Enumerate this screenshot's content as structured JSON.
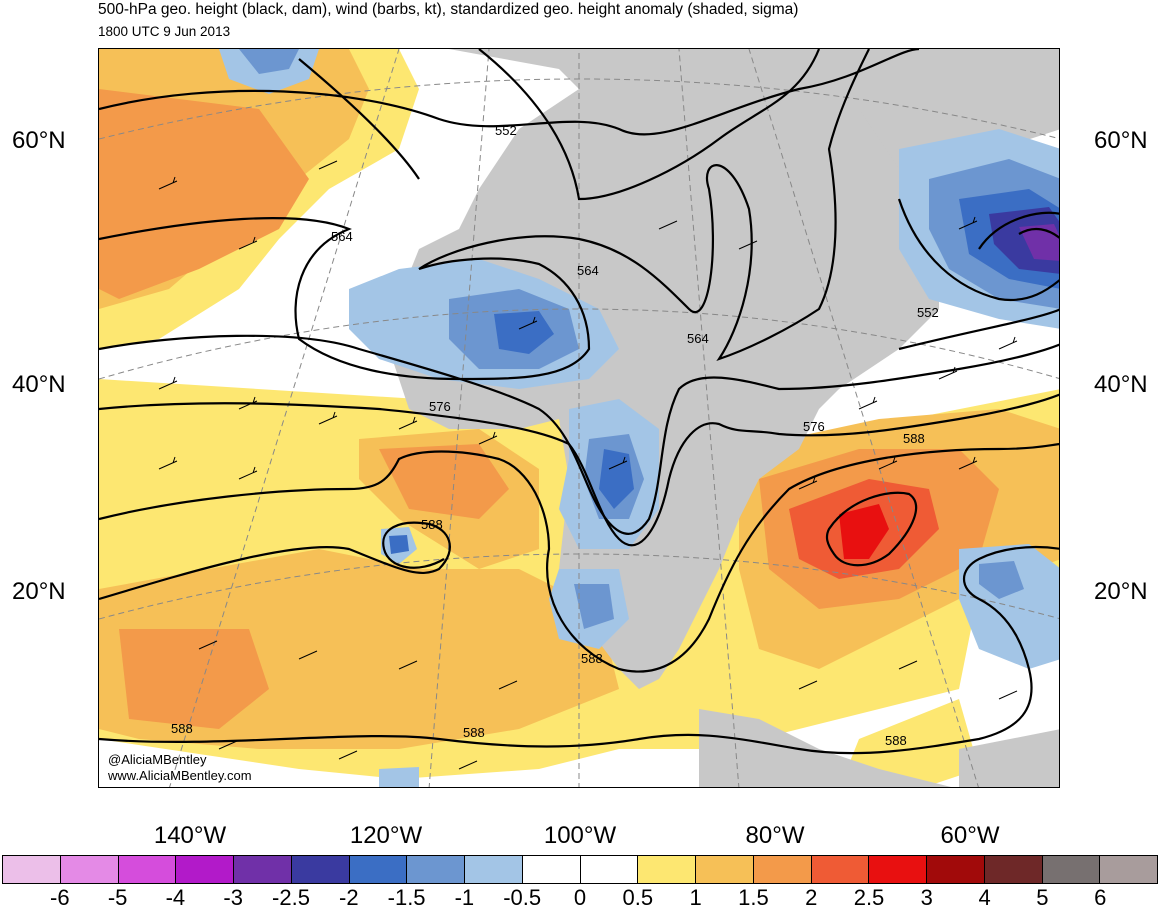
{
  "header": {
    "title": "500-hPa geo. height (black, dam), wind (barbs, kt), standardized geo. height anomaly (shaded, sigma)",
    "subtitle": "1800 UTC 9 Jun 2013"
  },
  "credit": {
    "handle": "@AliciaMBentley",
    "site": "www.AliciaMBentley.com"
  },
  "axes": {
    "lat_labels": [
      "60°N",
      "40°N",
      "20°N"
    ],
    "lon_labels": [
      "140°W",
      "120°W",
      "100°W",
      "80°W",
      "60°W"
    ]
  },
  "contour_labels": [
    "552",
    "564",
    "564",
    "564",
    "552",
    "576",
    "576",
    "588",
    "588",
    "588",
    "588",
    "588",
    "588"
  ],
  "colorbar": {
    "colors": [
      "#ecbfe9",
      "#e48ae6",
      "#d54ddc",
      "#b21ac9",
      "#7030a8",
      "#3a3aa0",
      "#3b6ec4",
      "#6c96d0",
      "#a3c5e6",
      "#ffffff",
      "#ffffff",
      "#fde771",
      "#f6c057",
      "#f39a4a",
      "#ef5b35",
      "#e81010",
      "#a10a0a",
      "#6e2828",
      "#777070",
      "#a89c9c"
    ],
    "labels": [
      "-6",
      "-5",
      "-4",
      "-3",
      "-2.5",
      "-2",
      "-1.5",
      "-1",
      "-0.5",
      "0",
      "0.5",
      "1",
      "1.5",
      "2",
      "2.5",
      "3",
      "4",
      "5",
      "6"
    ]
  },
  "colors": {
    "land": "#c8c8c8",
    "positive_1": "#fde771",
    "positive_2": "#f6c057",
    "positive_3": "#f39a4a",
    "positive_4": "#ef5b35",
    "positive_5": "#e81010",
    "negative_1": "#a3c5e6",
    "negative_2": "#6c96d0",
    "negative_3": "#3b6ec4",
    "negative_4": "#3a3aa0",
    "negative_5": "#7030a8"
  }
}
